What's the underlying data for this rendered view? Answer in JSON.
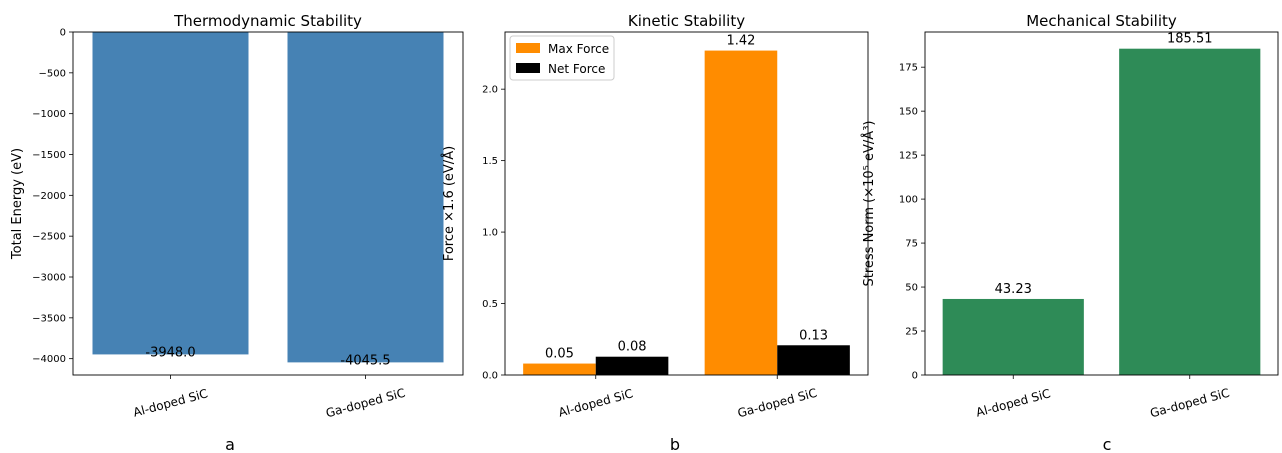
{
  "chart_data": [
    {
      "type": "bar",
      "title": "Thermodynamic Stability",
      "ylabel": "Total Energy (eV)",
      "categories": [
        "Al-doped SiC",
        "Ga-doped SiC"
      ],
      "ylim": [
        -4200,
        0
      ],
      "yticks": [
        0,
        -500,
        -1000,
        -1500,
        -2000,
        -2500,
        -3000,
        -3500,
        -4000
      ],
      "ytick_labels": [
        "0",
        "−500",
        "−1000",
        "−1500",
        "−2000",
        "−2500",
        "−3000",
        "−3500",
        "−4000"
      ],
      "series": [
        {
          "values": [
            -3948.0,
            -4045.5
          ],
          "labels": [
            "-3948.0",
            "-4045.5"
          ],
          "color": "#4682b4"
        }
      ],
      "panel_label": "a"
    },
    {
      "type": "bar",
      "title": "Kinetic Stability",
      "ylabel": "Force ×1.6 (eV/Å)",
      "categories": [
        "Al-doped SiC",
        "Ga-doped SiC"
      ],
      "ylim": [
        0,
        2.4
      ],
      "yticks": [
        0,
        0.5,
        1.0,
        1.5,
        2.0
      ],
      "ytick_labels": [
        "0.0",
        "0.5",
        "1.0",
        "1.5",
        "2.0"
      ],
      "legend_position": "top-left",
      "series": [
        {
          "name": "Max Force",
          "values": [
            0.08,
            2.27
          ],
          "labels": [
            "0.05",
            "1.42"
          ],
          "color": "#ff8c00"
        },
        {
          "name": "Net Force",
          "values": [
            0.128,
            0.208
          ],
          "labels": [
            "0.08",
            "0.13"
          ],
          "color": "#000000"
        }
      ],
      "panel_label": "b"
    },
    {
      "type": "bar",
      "title": "Mechanical Stability",
      "ylabel": "Stress Norm (×10⁵ eV/Å³)",
      "categories": [
        "Al-doped SiC",
        "Ga-doped SiC"
      ],
      "ylim": [
        0,
        195
      ],
      "yticks": [
        0,
        25,
        50,
        75,
        100,
        125,
        150,
        175
      ],
      "ytick_labels": [
        "0",
        "25",
        "50",
        "75",
        "100",
        "125",
        "150",
        "175"
      ],
      "series": [
        {
          "values": [
            43.23,
            185.51
          ],
          "labels": [
            "43.23",
            "185.51"
          ],
          "color": "#2e8b57"
        }
      ],
      "panel_label": "c"
    }
  ]
}
